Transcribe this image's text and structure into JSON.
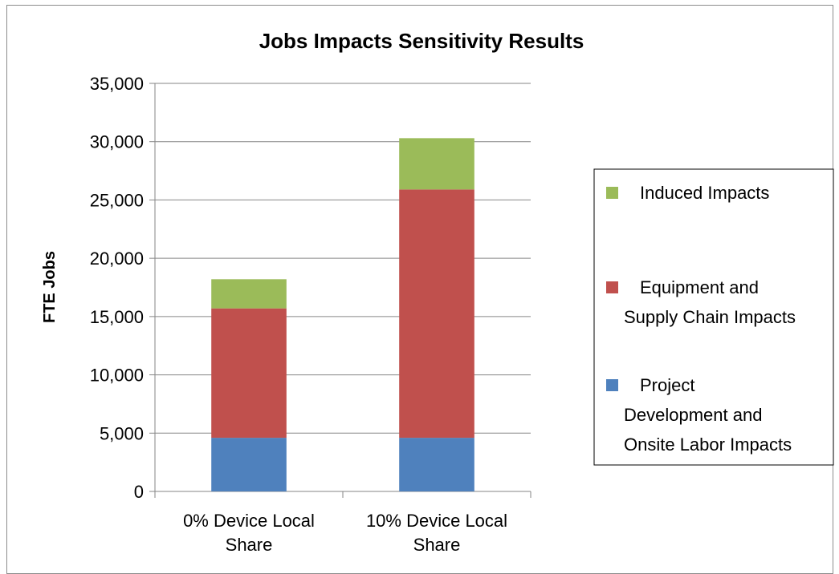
{
  "chart_data": {
    "type": "bar",
    "stacked": true,
    "title": "Jobs Impacts Sensitivity Results",
    "xlabel": "",
    "ylabel": "FTE Jobs",
    "ylim": [
      0,
      35000
    ],
    "yticks": [
      "0",
      "5,000",
      "10,000",
      "15,000",
      "20,000",
      "25,000",
      "30,000",
      "35,000"
    ],
    "grid": true,
    "legend_position": "right",
    "categories": [
      [
        "0% Device Local",
        "Share"
      ],
      [
        "10% Device Local",
        "Share"
      ]
    ],
    "series": [
      {
        "name": [
          "Project",
          "Development and",
          "Onsite Labor Impacts"
        ],
        "color": "#4f81bd",
        "values": [
          4600,
          4600
        ]
      },
      {
        "name": [
          "Equipment and",
          "Supply Chain Impacts"
        ],
        "color": "#c0504d",
        "values": [
          11100,
          21300
        ]
      },
      {
        "name": [
          "Induced Impacts"
        ],
        "color": "#9bbb59",
        "values": [
          2500,
          4400
        ]
      }
    ]
  }
}
